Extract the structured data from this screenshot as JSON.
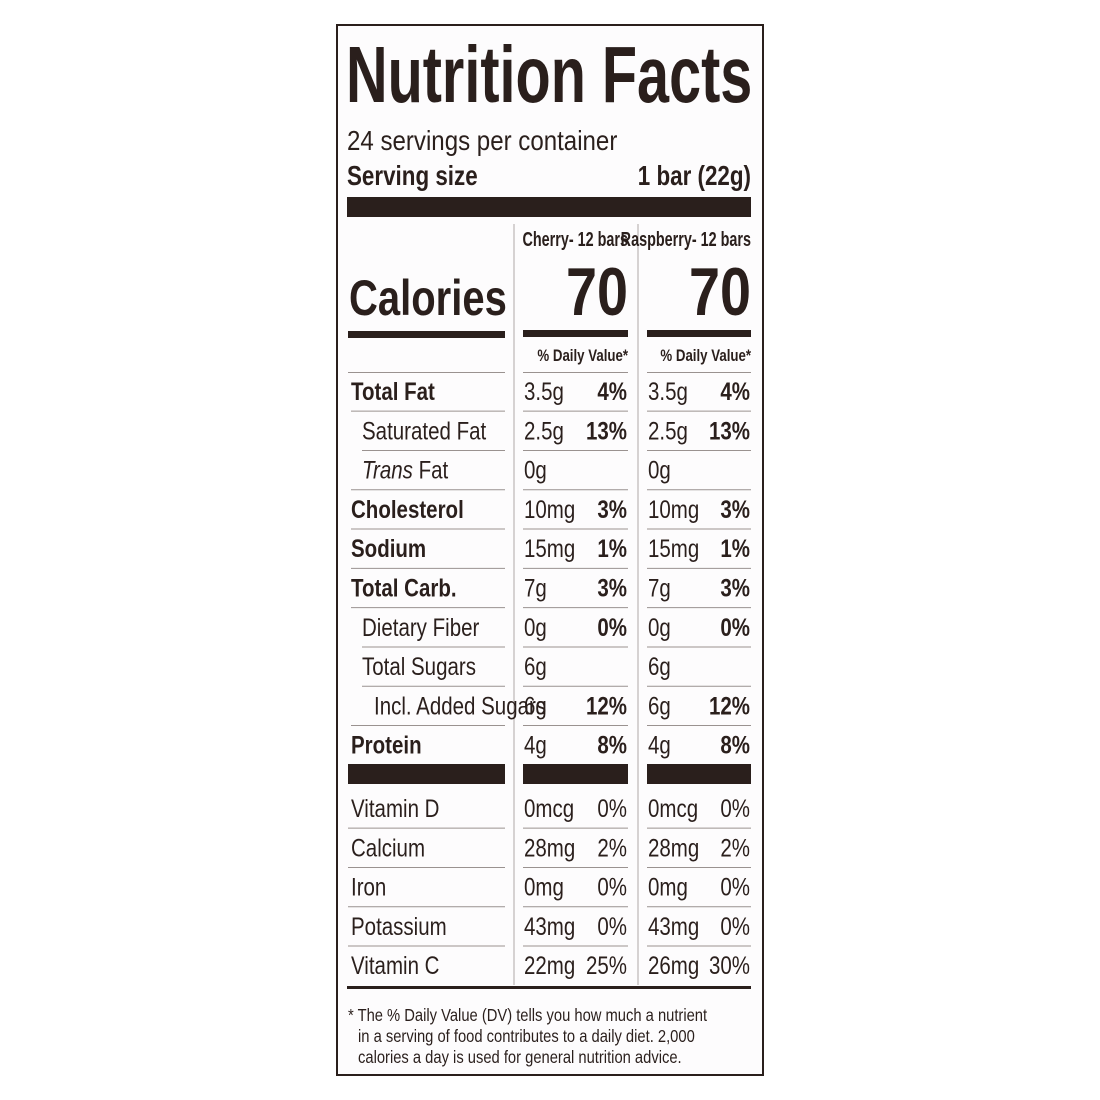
{
  "title": "Nutrition Facts",
  "servings": "24 servings per container",
  "serving_size": {
    "label": "Serving size",
    "value": "1 bar (22g)"
  },
  "calories_label": "Calories",
  "columns": [
    {
      "name": "Cherry- 12 bars",
      "calories": "70",
      "dv_header": "% Daily Value*"
    },
    {
      "name": "Raspberry- 12 bars",
      "calories": "70",
      "dv_header": "% Daily Value*"
    }
  ],
  "nutrients": [
    {
      "name": "Total Fat",
      "level": 0,
      "values": [
        [
          "3.5g",
          "4%"
        ],
        [
          "3.5g",
          "4%"
        ]
      ]
    },
    {
      "name": "Saturated Fat",
      "level": 1,
      "values": [
        [
          "2.5g",
          "13%"
        ],
        [
          "2.5g",
          "13%"
        ]
      ]
    },
    {
      "name_italic": "Trans",
      "name": "Fat",
      "level": 1,
      "values": [
        [
          "0g"
        ],
        [
          "0g"
        ]
      ]
    },
    {
      "name": "Cholesterol",
      "level": 0,
      "values": [
        [
          "10mg",
          "3%"
        ],
        [
          "10mg",
          "3%"
        ]
      ]
    },
    {
      "name": "Sodium",
      "level": 0,
      "values": [
        [
          "15mg",
          "1%"
        ],
        [
          "15mg",
          "1%"
        ]
      ]
    },
    {
      "name": "Total Carb.",
      "level": 0,
      "values": [
        [
          "7g",
          "3%"
        ],
        [
          "7g",
          "3%"
        ]
      ]
    },
    {
      "name": "Dietary Fiber",
      "level": 1,
      "values": [
        [
          "0g",
          "0%"
        ],
        [
          "0g",
          "0%"
        ]
      ]
    },
    {
      "name": "Total Sugars",
      "level": 1,
      "values": [
        [
          "6g"
        ],
        [
          "6g"
        ]
      ]
    },
    {
      "name": "Incl. Added Sugars",
      "level": 2,
      "values": [
        [
          "6g",
          "12%"
        ],
        [
          "6g",
          "12%"
        ]
      ]
    },
    {
      "name": "Protein",
      "level": 0,
      "values": [
        [
          "4g",
          "8%"
        ],
        [
          "4g",
          "8%"
        ]
      ]
    }
  ],
  "vitamins": [
    {
      "name": "Vitamin D",
      "values": [
        [
          "0mcg",
          "0%"
        ],
        [
          "0mcg",
          "0%"
        ]
      ]
    },
    {
      "name": "Calcium",
      "values": [
        [
          "28mg",
          "2%"
        ],
        [
          "28mg",
          "2%"
        ]
      ]
    },
    {
      "name": "Iron",
      "values": [
        [
          "0mg",
          "0%"
        ],
        [
          "0mg",
          "0%"
        ]
      ]
    },
    {
      "name": "Potassium",
      "values": [
        [
          "43mg",
          "0%"
        ],
        [
          "43mg",
          "0%"
        ]
      ]
    },
    {
      "name": "Vitamin C",
      "values": [
        [
          "22mg",
          "25%"
        ],
        [
          "26mg",
          "30%"
        ]
      ]
    }
  ],
  "footnote": [
    "* The % Daily Value (DV) tells you how much a nutrient",
    "in a serving of food contributes to a daily diet. 2,000",
    "calories a day is used for general nutrition advice."
  ]
}
